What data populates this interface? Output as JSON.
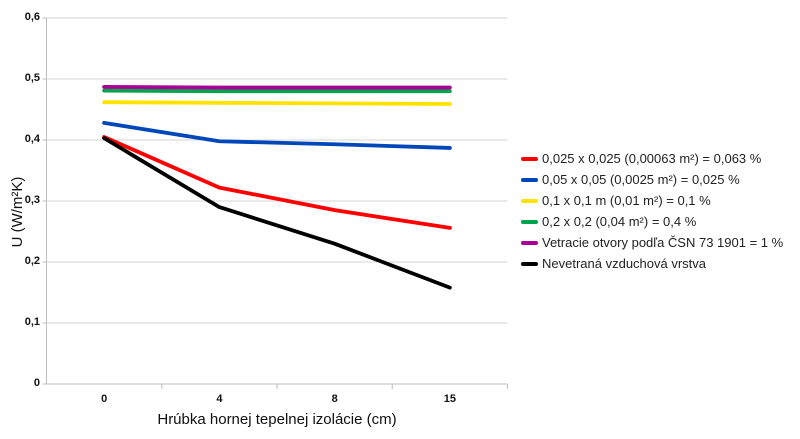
{
  "chart_data": {
    "type": "line",
    "title": "",
    "xlabel": "Hrúbka hornej tepelnej izolácie (cm)",
    "ylabel": "U (W/m²K)",
    "categories": [
      "0",
      "4",
      "8",
      "15"
    ],
    "ylim": [
      0,
      0.6
    ],
    "ytick_step": 0.1,
    "ytick_labels": [
      "0",
      "0,1",
      "0,2",
      "0,3",
      "0,4",
      "0,5",
      "0,6"
    ],
    "grid": true,
    "legend_position": "right",
    "series": [
      {
        "name": "0,025 x 0,025 (0,00063 m²) = 0,063 %",
        "color": "#ff0000",
        "values": [
          0.405,
          0.322,
          0.285,
          0.256
        ]
      },
      {
        "name": "0,05 x 0,05 (0,0025 m²) = 0,025 %",
        "color": "#0047ba",
        "values": [
          0.428,
          0.398,
          0.393,
          0.387
        ]
      },
      {
        "name": "0,1 x 0,1 m (0,01 m²) = 0,1 %",
        "color": "#ffe200",
        "values": [
          0.462,
          0.461,
          0.46,
          0.459
        ]
      },
      {
        "name": "0,2 x 0,2 (0,04 m²) = 0,4 %",
        "color": "#00a44a",
        "values": [
          0.481,
          0.48,
          0.48,
          0.48
        ]
      },
      {
        "name": "Vetracie otvory podľa ČSN 73 1901 = 1 %",
        "color": "#aa0099",
        "values": [
          0.487,
          0.486,
          0.486,
          0.486
        ]
      },
      {
        "name": "Nevetraná vzduchová vrstva",
        "color": "#000000",
        "values": [
          0.403,
          0.29,
          0.23,
          0.158
        ]
      }
    ],
    "style": {
      "gridline_color": "#d6d6d6",
      "axis_color": "#bdbdbd",
      "line_width": 3.8
    }
  }
}
